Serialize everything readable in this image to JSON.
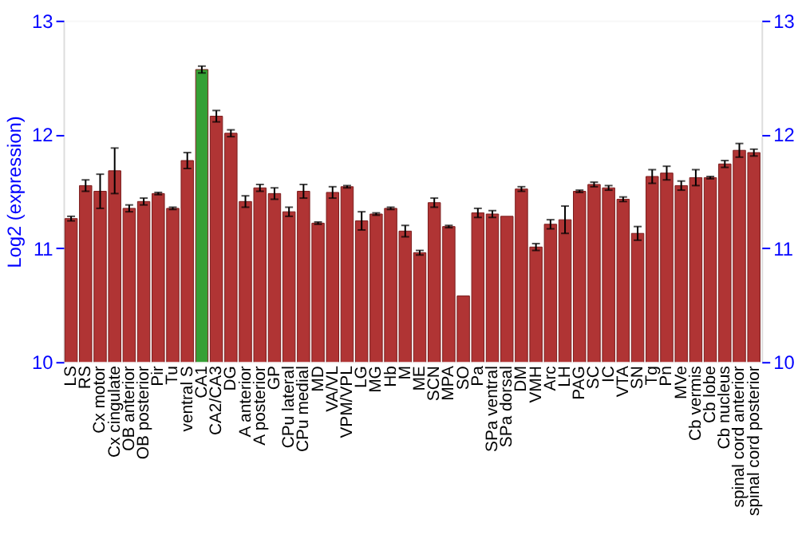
{
  "chart_data": {
    "type": "bar",
    "ylabel": "Log2 (expression)",
    "categories": [
      "LS",
      "RS",
      "Cx motor",
      "Cx cingulate",
      "OB anterior",
      "OB posterior",
      "Pir",
      "Tu",
      "ventral S",
      "CA1",
      "CA2/CA3",
      "DG",
      "A anterior",
      "A posterior",
      "GP",
      "CPu lateral",
      "CPu medial",
      "MD",
      "VA/VL",
      "VPM/VPL",
      "LG",
      "MG",
      "Hb",
      "M",
      "ME",
      "SCN",
      "MPA",
      "SO",
      "Pa",
      "SPa ventral",
      "SPa dorsal",
      "DM",
      "VMH",
      "Arc",
      "LH",
      "PAG",
      "SC",
      "IC",
      "VTA",
      "SN",
      "Tg",
      "Pn",
      "MVe",
      "Cb vermis",
      "Cb lobe",
      "Cb nucleus",
      "spinal cord anterior",
      "spinal cord posterior"
    ],
    "values": [
      11.26,
      11.55,
      11.5,
      11.68,
      11.35,
      11.41,
      11.48,
      11.35,
      11.77,
      12.57,
      12.16,
      12.01,
      11.41,
      11.53,
      11.48,
      11.32,
      11.5,
      11.22,
      11.49,
      11.54,
      11.24,
      11.3,
      11.35,
      11.15,
      10.96,
      11.4,
      11.19,
      10.58,
      11.31,
      11.3,
      11.28,
      11.52,
      11.01,
      11.21,
      11.25,
      11.5,
      11.56,
      11.53,
      11.43,
      11.13,
      11.63,
      11.66,
      11.55,
      11.62,
      11.62,
      11.74,
      11.86,
      11.84
    ],
    "errors": [
      0.02,
      0.05,
      0.15,
      0.2,
      0.03,
      0.03,
      0.01,
      0.01,
      0.07,
      0.03,
      0.05,
      0.03,
      0.05,
      0.03,
      0.05,
      0.04,
      0.06,
      0.01,
      0.05,
      0.01,
      0.08,
      0.01,
      0.01,
      0.05,
      0.02,
      0.04,
      0.01,
      null,
      0.04,
      0.03,
      null,
      0.02,
      0.03,
      0.04,
      0.12,
      0.01,
      0.02,
      0.02,
      0.02,
      0.06,
      0.06,
      0.06,
      0.04,
      0.07,
      0.01,
      0.03,
      0.06,
      0.03
    ],
    "colors": [
      "#b03434",
      "#b03434",
      "#b03434",
      "#b03434",
      "#b03434",
      "#b03434",
      "#b03434",
      "#b03434",
      "#b03434",
      "#35a035",
      "#b03434",
      "#b03434",
      "#b03434",
      "#b03434",
      "#b03434",
      "#b03434",
      "#b03434",
      "#b03434",
      "#b03434",
      "#b03434",
      "#b03434",
      "#b03434",
      "#b03434",
      "#b03434",
      "#b03434",
      "#b03434",
      "#b03434",
      "#b03434",
      "#b03434",
      "#b03434",
      "#b03434",
      "#b03434",
      "#b03434",
      "#b03434",
      "#b03434",
      "#b03434",
      "#b03434",
      "#b03434",
      "#b03434",
      "#b03434",
      "#b03434",
      "#b03434",
      "#b03434",
      "#b03434",
      "#b03434",
      "#b03434",
      "#b03434",
      "#b03434"
    ],
    "ylim": [
      10,
      13
    ],
    "yticks": [
      10,
      11,
      12,
      13
    ],
    "y2lim": [
      10,
      13
    ],
    "y2ticks": [
      10,
      11,
      12,
      13
    ],
    "grid": "y"
  }
}
